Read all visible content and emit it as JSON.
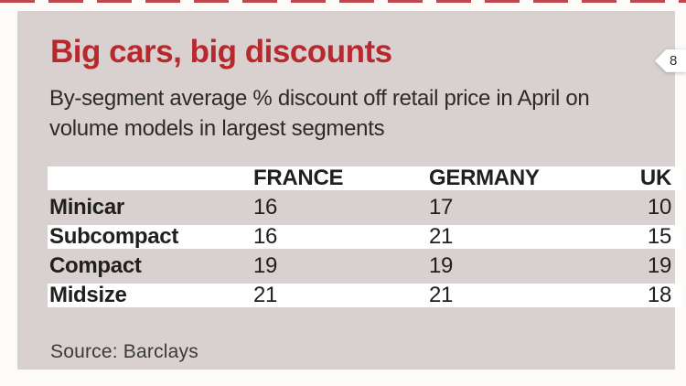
{
  "header": {
    "title": "Big cars, big discounts",
    "subtitle_line1": "By-segment average % discount off retail price in April on",
    "subtitle_line2": "volume models in largest segments",
    "badge_label": "8"
  },
  "source_note": "Source: Barclays",
  "colors": {
    "accent_red": "#b8292e",
    "dash_red": "#c04850",
    "card_background": "#d9d1cf",
    "stripe_white": "#fefefe",
    "text_dark": "#1f1f1f"
  },
  "chart_data": {
    "type": "table",
    "title": "Big cars, big discounts",
    "subtitle": "By-segment average % discount off retail price in April on volume models in largest segments",
    "columns": [
      "FRANCE",
      "GERMANY",
      "UK"
    ],
    "rows": [
      {
        "label": "Minicar",
        "values": [
          16,
          17,
          10
        ]
      },
      {
        "label": "Subcompact",
        "values": [
          16,
          21,
          15
        ]
      },
      {
        "label": "Compact",
        "values": [
          19,
          19,
          19
        ]
      },
      {
        "label": "Midsize",
        "values": [
          21,
          21,
          18
        ]
      }
    ],
    "source": "Source: Barclays",
    "layout": {
      "striped_rows": true,
      "header_background": "white",
      "value_unit": "percent"
    }
  }
}
